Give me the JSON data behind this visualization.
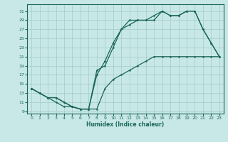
{
  "xlabel": "Humidex (Indice chaleur)",
  "bg_color": "#c8e8e8",
  "grid_color": "#a8d0cc",
  "line_color": "#1a6655",
  "xlim": [
    -0.5,
    23.5
  ],
  "ylim": [
    8.5,
    32.5
  ],
  "yticks": [
    9,
    11,
    13,
    15,
    17,
    19,
    21,
    23,
    25,
    27,
    29,
    31
  ],
  "xticks": [
    0,
    1,
    2,
    3,
    4,
    5,
    6,
    7,
    8,
    9,
    10,
    11,
    12,
    13,
    14,
    15,
    16,
    17,
    18,
    19,
    20,
    21,
    22,
    23
  ],
  "line1_x": [
    0,
    1,
    2,
    3,
    4,
    5,
    6,
    7,
    8,
    9,
    10,
    11,
    12,
    13,
    14,
    15,
    16,
    17,
    18,
    19,
    20,
    21,
    22,
    23
  ],
  "line1_y": [
    14,
    13,
    12,
    11,
    10,
    10,
    9.5,
    9.5,
    9.5,
    14,
    16,
    17,
    18,
    19,
    20,
    21,
    21,
    21,
    21,
    21,
    21,
    21,
    21,
    21
  ],
  "line2_x": [
    0,
    1,
    2,
    3,
    4,
    5,
    6,
    7,
    8,
    9,
    10,
    11,
    12,
    13,
    14,
    15,
    16,
    17,
    18,
    19,
    20,
    21,
    22,
    23
  ],
  "line2_y": [
    14,
    13,
    12,
    12,
    11,
    10,
    9.5,
    9.5,
    18,
    19,
    23,
    27,
    28,
    29,
    29,
    30,
    31,
    30,
    30,
    31,
    31,
    27,
    24,
    21
  ],
  "line3_x": [
    0,
    1,
    2,
    3,
    4,
    5,
    6,
    7,
    8,
    9,
    10,
    11,
    12,
    13,
    14,
    15,
    16,
    17,
    18,
    19,
    20,
    21,
    22,
    23
  ],
  "line3_y": [
    14,
    13,
    12,
    12,
    11,
    10,
    9.5,
    9.5,
    17,
    20,
    24,
    27,
    29,
    29,
    29,
    29,
    31,
    30,
    30,
    31,
    31,
    27,
    24,
    21
  ]
}
